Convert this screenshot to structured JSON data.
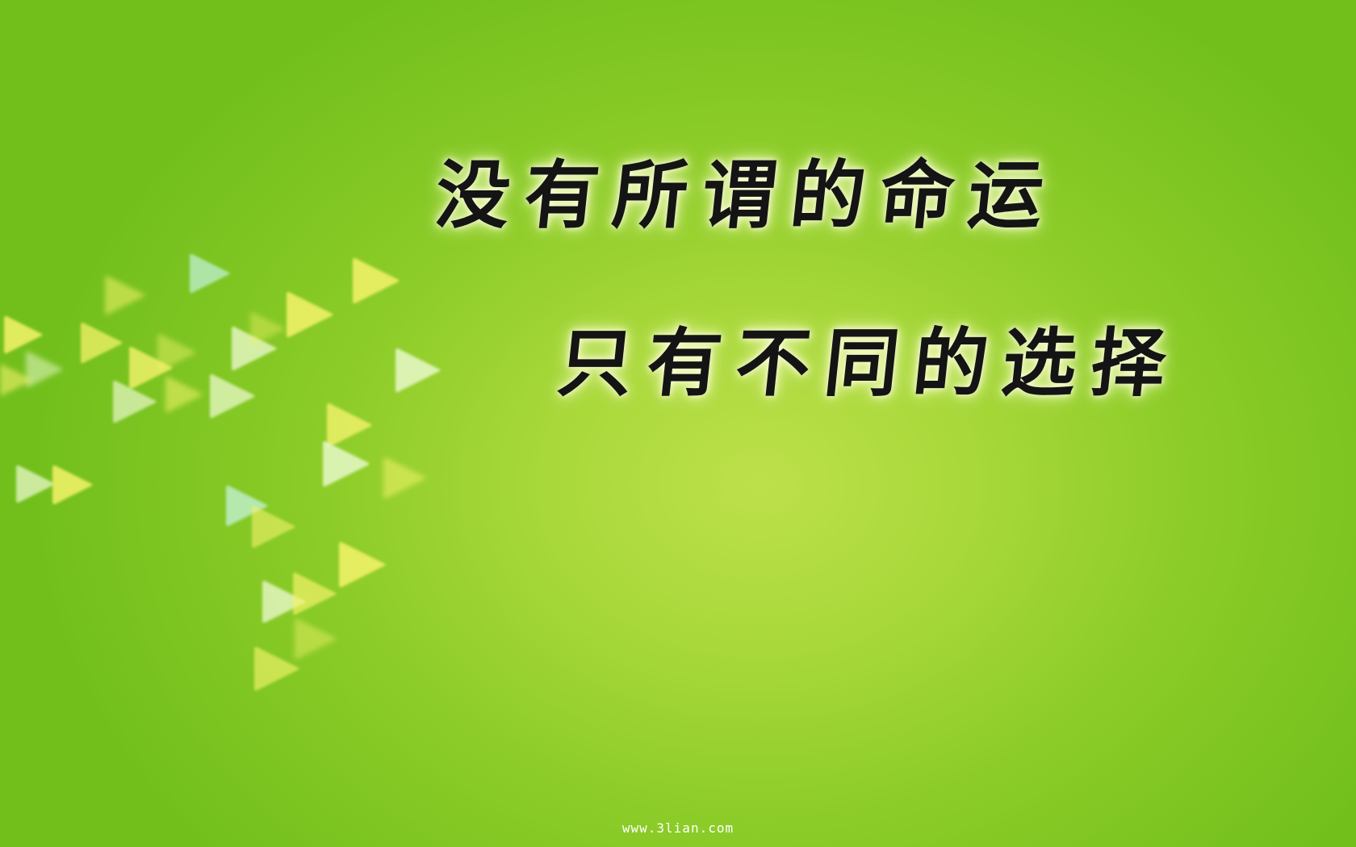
{
  "quote": {
    "line1": "没有所谓的命运",
    "line2": "只有不同的选择"
  },
  "watermark": "www.3lian.com",
  "colors": {
    "background_center": "#bde04a",
    "background_edge": "#72bf1c",
    "text": "#141414",
    "text_glow": "#ffffe0",
    "triangle_yellow": "#f4f26a",
    "triangle_white": "#e8f8c8",
    "triangle_mint": "#bff0d0"
  },
  "decoration": {
    "icon": "play-triangle-icon",
    "style": "bokeh arrow cluster pointing right"
  }
}
